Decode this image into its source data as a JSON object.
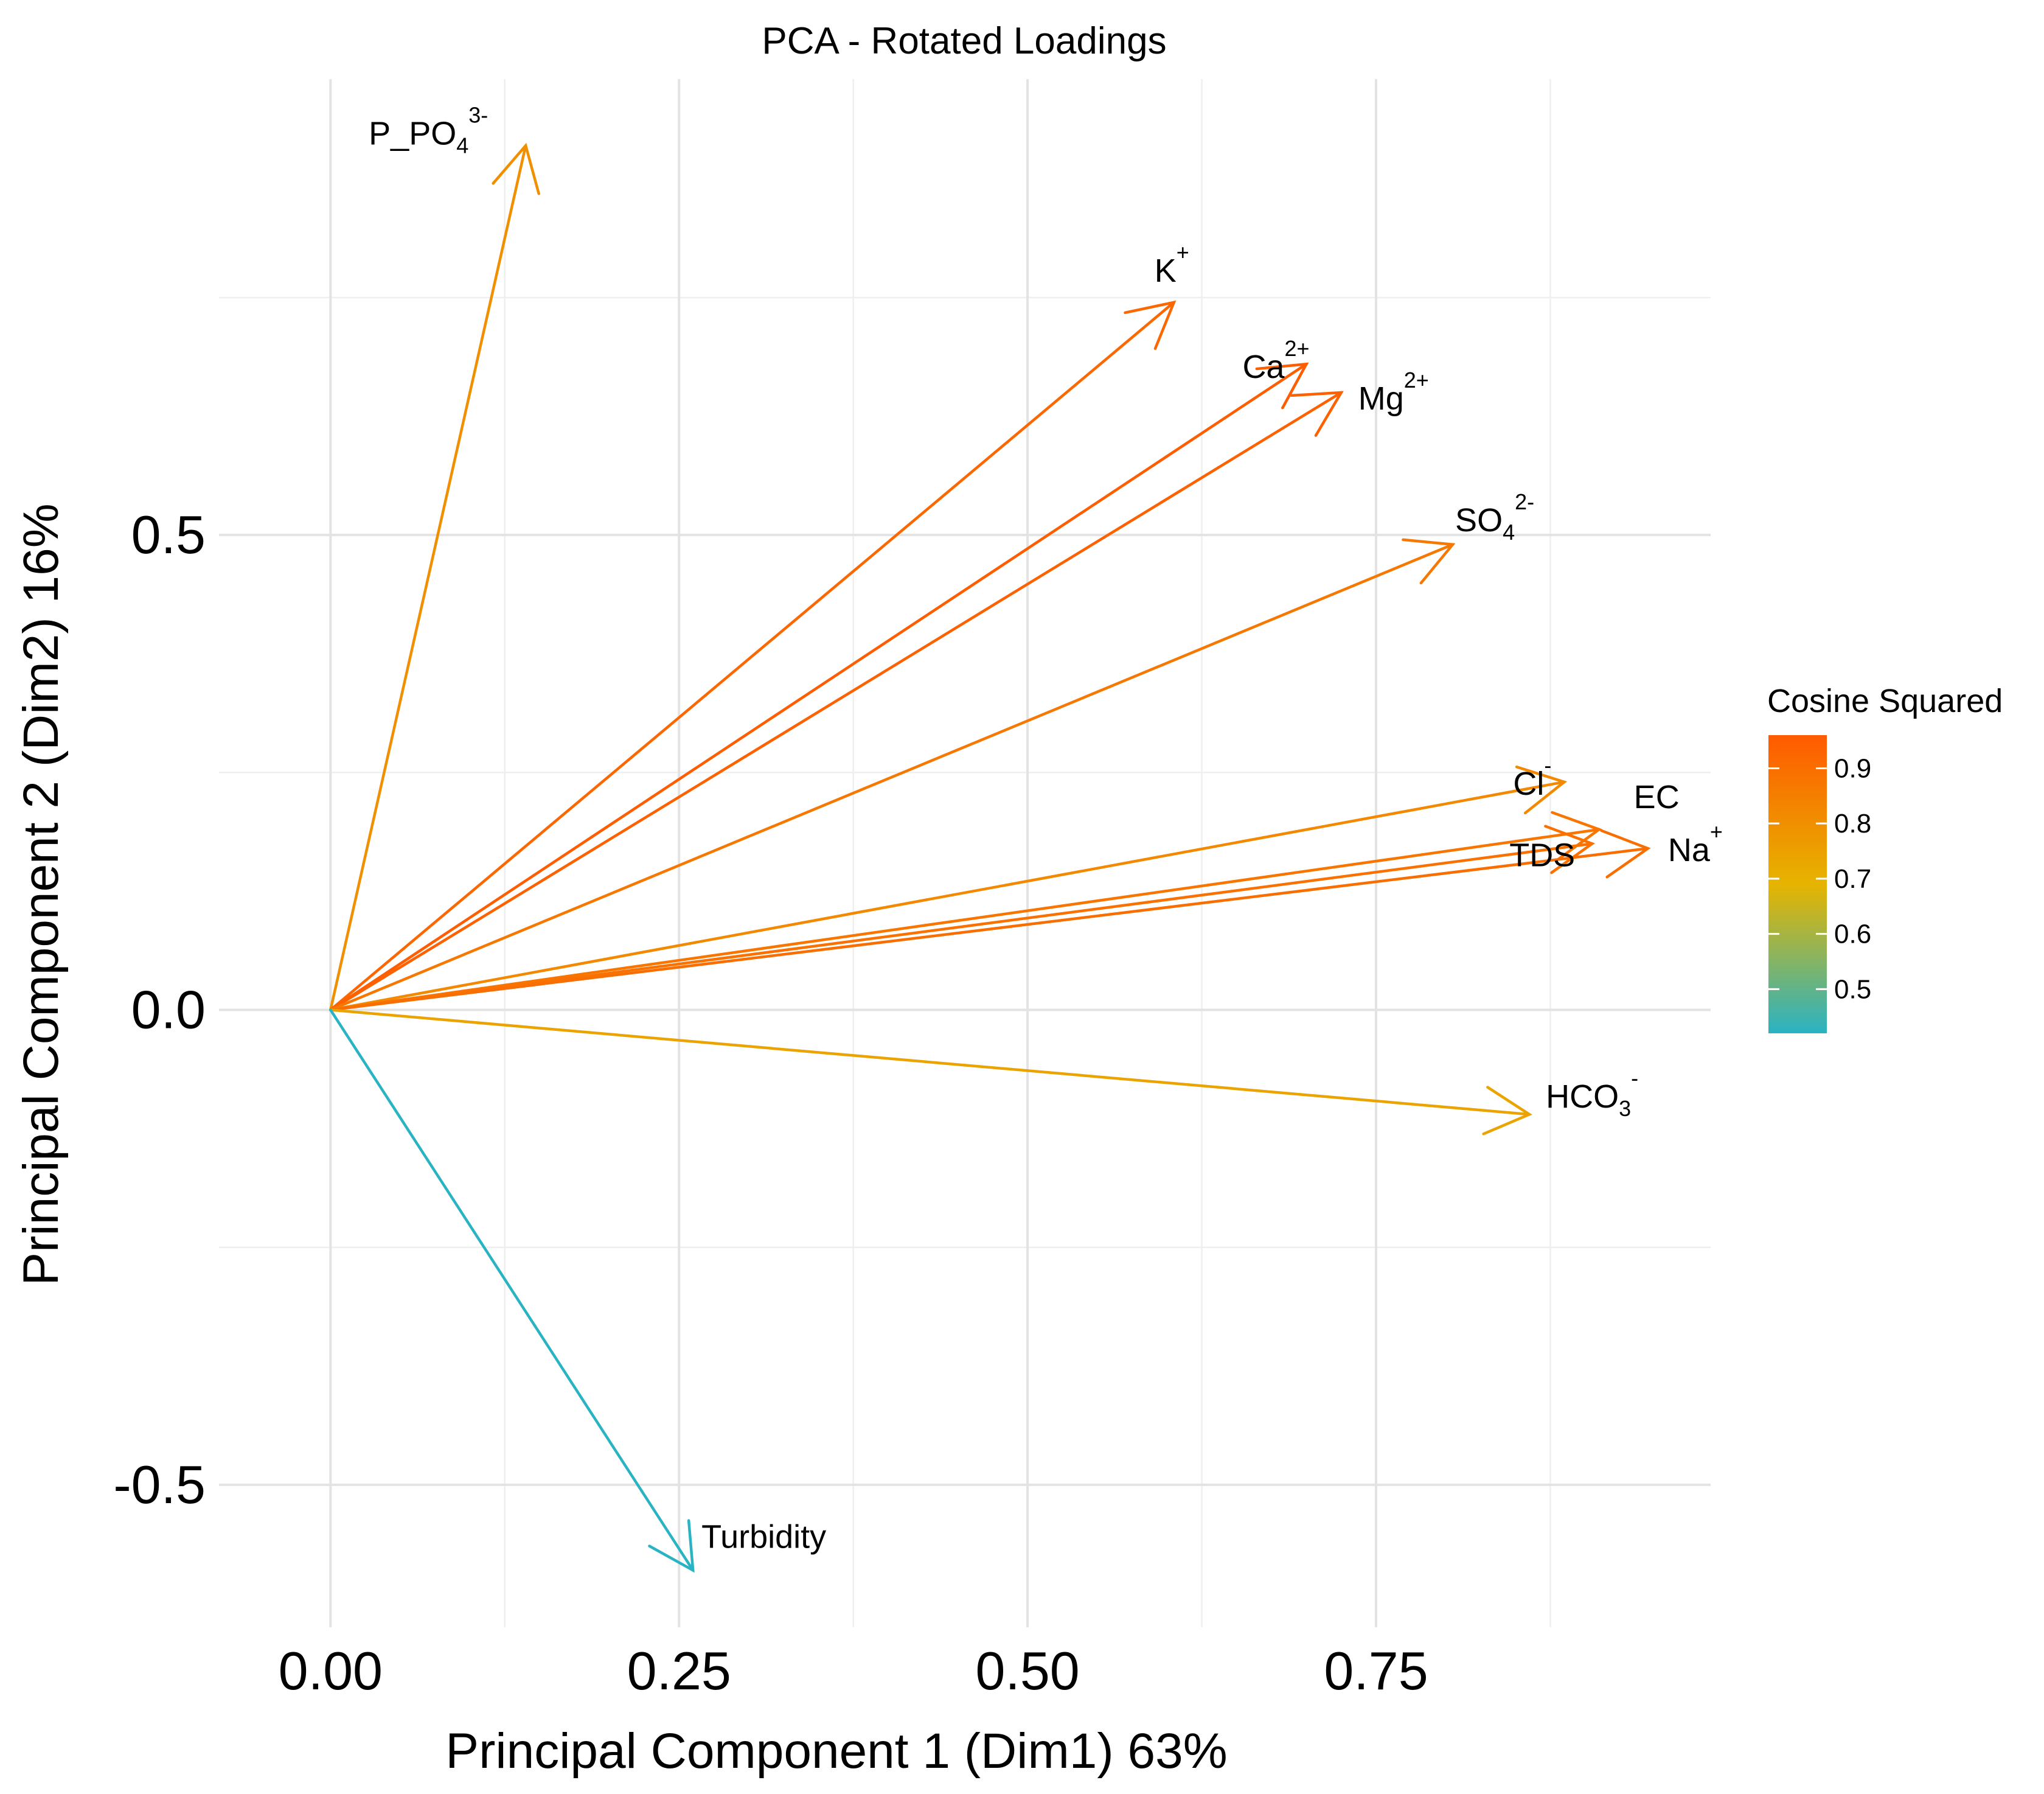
{
  "chart_data": {
    "type": "biplot",
    "title": "PCA - Rotated Loadings",
    "xlabel": "Principal Component 1 (Dim1) 63%",
    "ylabel": "Principal Component 2 (Dim2) 16%",
    "xlim": [
      -0.08,
      0.99
    ],
    "ylim": [
      -0.65,
      0.98
    ],
    "x_ticks": [
      0.0,
      0.25,
      0.5,
      0.75
    ],
    "x_tick_labels": [
      "0.00",
      "0.25",
      "0.50",
      "0.75"
    ],
    "y_ticks": [
      -0.5,
      0.0,
      0.5
    ],
    "y_tick_labels": [
      "-0.5",
      "0.0",
      "0.5"
    ],
    "grid": true,
    "legend": {
      "title": "Cosine Squared",
      "position": "right",
      "range": [
        0.42,
        0.96
      ],
      "ticks": [
        0.5,
        0.6,
        0.7,
        0.8,
        0.9
      ],
      "tick_labels": [
        "0.5",
        "0.6",
        "0.7",
        "0.8",
        "0.9"
      ],
      "colors": [
        "#2AB3C3",
        "#E6B400",
        "#FF5A00"
      ]
    },
    "series": [
      {
        "name": "P_PO4",
        "sup": "3-",
        "sub": "4",
        "base": "P_PO",
        "x": 0.14,
        "y": 0.91,
        "cos2": 0.8
      },
      {
        "name": "K",
        "sup": "+",
        "sub": "",
        "base": "K",
        "x": 0.605,
        "y": 0.745,
        "cos2": 0.92
      },
      {
        "name": "Ca",
        "sup": "2+",
        "sub": "",
        "base": "Ca",
        "x": 0.7,
        "y": 0.68,
        "cos2": 0.95
      },
      {
        "name": "Mg",
        "sup": "2+",
        "sub": "",
        "base": "Mg",
        "x": 0.725,
        "y": 0.65,
        "cos2": 0.94
      },
      {
        "name": "SO4",
        "sup": "2-",
        "sub": "4",
        "base": "SO",
        "x": 0.805,
        "y": 0.49,
        "cos2": 0.87
      },
      {
        "name": "Cl",
        "sup": "-",
        "sub": "",
        "base": "Cl",
        "x": 0.885,
        "y": 0.24,
        "cos2": 0.82
      },
      {
        "name": "EC",
        "sup": "",
        "sub": "",
        "base": "EC",
        "x": 0.91,
        "y": 0.19,
        "cos2": 0.88
      },
      {
        "name": "TDS",
        "sup": "",
        "sub": "",
        "base": "TDS",
        "x": 0.905,
        "y": 0.175,
        "cos2": 0.89
      },
      {
        "name": "Na",
        "sup": "+",
        "sub": "",
        "base": "Na",
        "x": 0.945,
        "y": 0.17,
        "cos2": 0.9
      },
      {
        "name": "HCO3",
        "sup": "-",
        "sub": "3",
        "base": "HCO",
        "x": 0.86,
        "y": -0.11,
        "cos2": 0.74
      },
      {
        "name": "Turbidity",
        "sup": "",
        "sub": "",
        "base": "Turbidity",
        "x": 0.26,
        "y": -0.59,
        "cos2": 0.42
      }
    ]
  }
}
